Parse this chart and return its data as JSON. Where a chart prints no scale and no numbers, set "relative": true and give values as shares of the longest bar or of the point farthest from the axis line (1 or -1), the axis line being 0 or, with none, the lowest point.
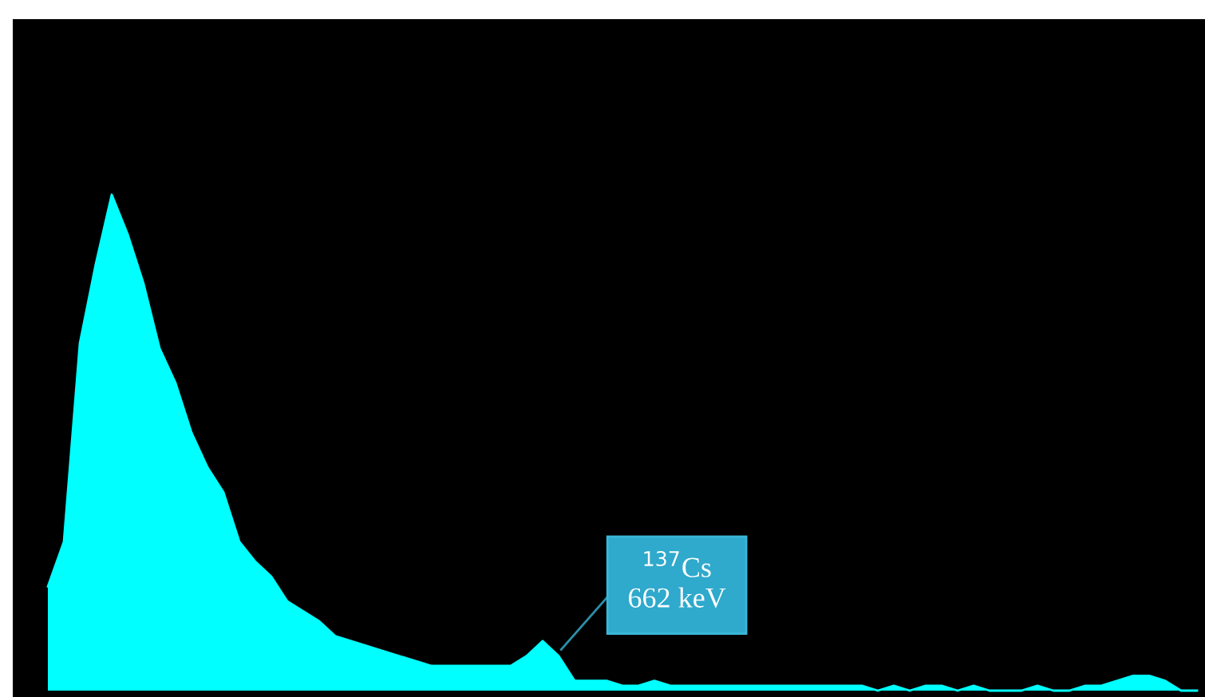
{
  "chart_data": {
    "type": "area",
    "relative": true,
    "categories": [
      null,
      null,
      null,
      null,
      null,
      null,
      null,
      null,
      null,
      null,
      null,
      null,
      null,
      null,
      null,
      null,
      null,
      null,
      null,
      null,
      null,
      null,
      null,
      null,
      null,
      null,
      null,
      null,
      null,
      null,
      null,
      null,
      null,
      null,
      null,
      null,
      null,
      null,
      null,
      null,
      null,
      null,
      null,
      null,
      null,
      null,
      null,
      null,
      null,
      null,
      null,
      null,
      null,
      null,
      null,
      null,
      null,
      null,
      null,
      null,
      null,
      null,
      null,
      null,
      null,
      null,
      null,
      null,
      null,
      null,
      null,
      null,
      null
    ],
    "series": [
      {
        "color": "#00ffff",
        "values": [
          0.21,
          0.3,
          0.7,
          0.86,
          1.0,
          0.92,
          0.82,
          0.69,
          0.62,
          0.52,
          0.45,
          0.4,
          0.3,
          0.26,
          0.23,
          0.18,
          0.16,
          0.14,
          0.11,
          0.1,
          0.09,
          0.08,
          0.07,
          0.06,
          0.05,
          0.05,
          0.05,
          0.05,
          0.05,
          0.05,
          0.07,
          0.1,
          0.07,
          0.02,
          0.02,
          0.02,
          0.01,
          0.01,
          0.02,
          0.01,
          0.01,
          0.01,
          0.01,
          0.01,
          0.01,
          0.01,
          0.01,
          0.01,
          0.01,
          0.01,
          0.01,
          0.01,
          0.0,
          0.01,
          0.0,
          0.01,
          0.01,
          0.0,
          0.01,
          0.0,
          0.0,
          0.0,
          0.01,
          0.0,
          0.0,
          0.01,
          0.01,
          0.02,
          0.03,
          0.03,
          0.02,
          0.0,
          0.0
        ]
      }
    ],
    "annotations": [
      "$^{137}$Cs\n662 keV"
    ]
  }
}
